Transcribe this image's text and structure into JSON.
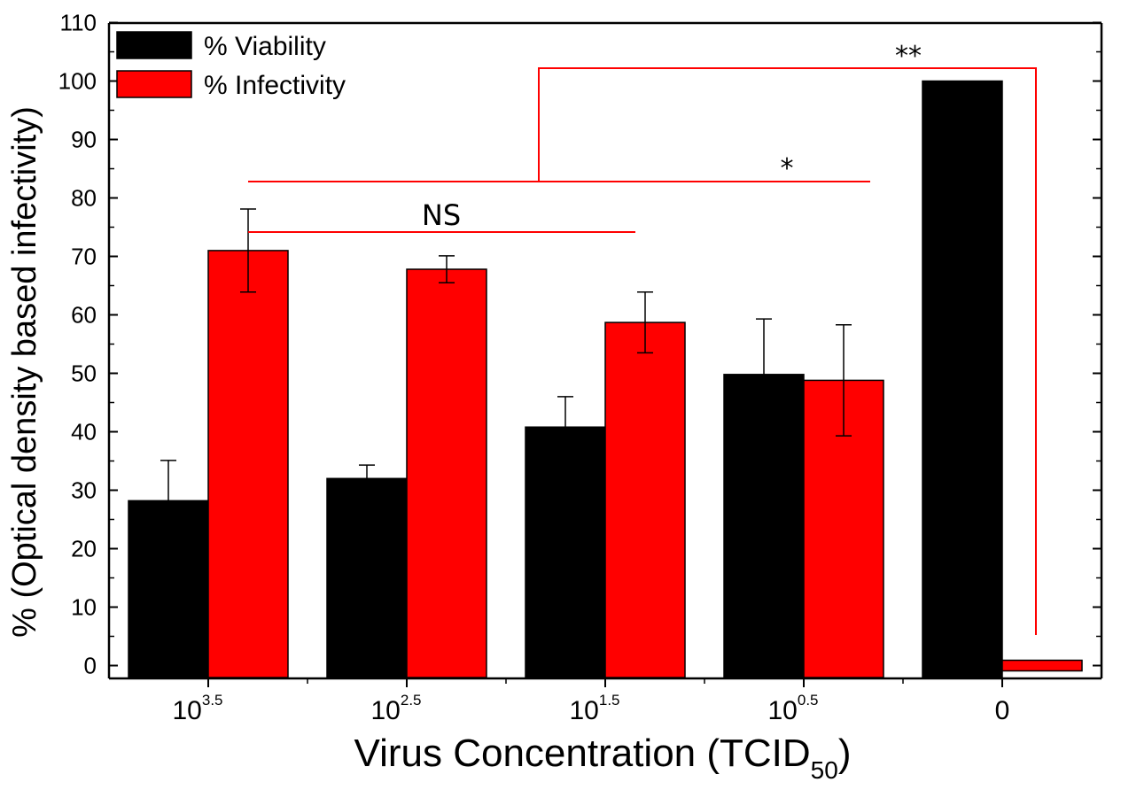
{
  "chart_data": {
    "type": "bar",
    "xlabel": "Virus Concentration (TCID",
    "xlabel_sub": "50",
    "xlabel_end": ")",
    "ylabel": "% (Optical density based infectivity)",
    "ylim": [
      0,
      110
    ],
    "yticks": [
      0,
      10,
      20,
      30,
      40,
      50,
      60,
      70,
      80,
      90,
      100,
      110
    ],
    "categories": [
      {
        "base": "10",
        "exp": "3.5"
      },
      {
        "base": "10",
        "exp": "2.5"
      },
      {
        "base": "10",
        "exp": "1.5"
      },
      {
        "base": "10",
        "exp": "0.5"
      },
      {
        "base": "0",
        "exp": ""
      }
    ],
    "series": [
      {
        "name": "% Viability",
        "color": "#000000",
        "values": [
          28.2,
          32.0,
          40.8,
          49.8,
          100
        ],
        "errors": [
          6.9,
          2.3,
          5.2,
          9.5,
          null
        ]
      },
      {
        "name": "% Infectivity",
        "color": "#ff0000",
        "values": [
          71.0,
          67.8,
          58.7,
          48.8,
          0
        ],
        "errors": [
          7.1,
          2.3,
          5.2,
          9.5,
          null
        ]
      }
    ],
    "legend": "top-left",
    "annotations": {
      "ns": "NS",
      "single": "*",
      "double": "**"
    },
    "annotation_color": "#ff0000"
  }
}
